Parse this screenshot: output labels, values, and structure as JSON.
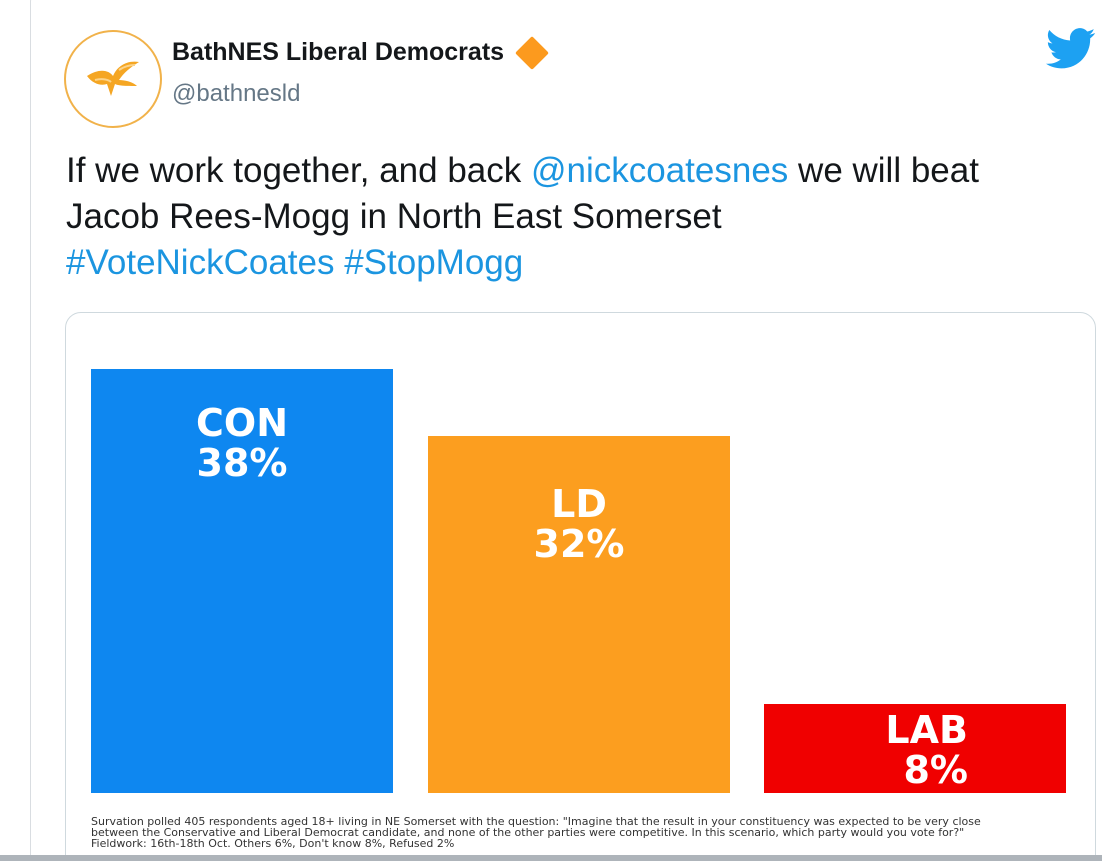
{
  "account": {
    "display_name": "BathNES Liberal Democrats",
    "handle": "@bathnesld"
  },
  "colors": {
    "link": "#1b95e0",
    "twitter_blue": "#1da1f2",
    "con": "#0e87f0",
    "ld": "#fc9e1f",
    "lab": "#f00000"
  },
  "tweet": {
    "text_1": "If we work together, and back ",
    "mention": "@nickcoatesnes",
    "text_2": " we will beat Jacob Rees-Mogg in North East Somerset",
    "hashtag_1": "#VoteNickCoates",
    "hashtag_2": "#StopMogg"
  },
  "chart_data": {
    "type": "bar",
    "categories": [
      "CON",
      "LD",
      "LAB"
    ],
    "values": [
      38,
      32,
      8
    ],
    "value_labels": [
      "38%",
      "32%",
      "8%"
    ],
    "ylim": [
      0,
      40
    ],
    "grid": false,
    "footnote": [
      "Survation polled 405 respondents aged 18+ living in NE Somerset with the question: \"Imagine that the result in your constituency was expected to be very close",
      "between the Conservative and Liberal Democrat candidate, and none of the other parties were competitive. In this scenario, which party would you vote for?\"",
      "Fieldwork: 16th-18th Oct. Others 6%, Don't know 8%, Refused 2%"
    ]
  }
}
